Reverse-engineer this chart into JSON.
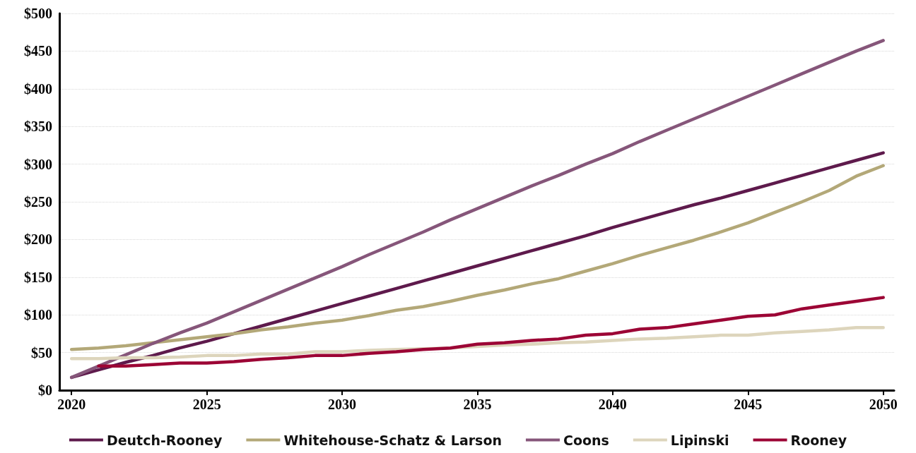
{
  "chart_data": {
    "type": "line",
    "x": [
      2020,
      2021,
      2022,
      2023,
      2024,
      2025,
      2026,
      2027,
      2028,
      2029,
      2030,
      2031,
      2032,
      2033,
      2034,
      2035,
      2036,
      2037,
      2038,
      2039,
      2040,
      2041,
      2042,
      2043,
      2044,
      2045,
      2046,
      2047,
      2048,
      2049,
      2050
    ],
    "series": [
      {
        "name": "Deutch-Rooney",
        "color": "#5e1a4c",
        "values": [
          17,
          27,
          37,
          46,
          56,
          65,
          75,
          85,
          95,
          105,
          115,
          125,
          135,
          145,
          155,
          165,
          175,
          185,
          195,
          205,
          216,
          226,
          236,
          246,
          255,
          265,
          275,
          285,
          295,
          305,
          315
        ]
      },
      {
        "name": "Whitehouse-Schatz & Larson",
        "color": "#b3a878",
        "values": [
          54,
          56,
          59,
          63,
          67,
          71,
          75,
          80,
          84,
          89,
          93,
          99,
          106,
          111,
          118,
          126,
          133,
          141,
          148,
          158,
          168,
          179,
          189,
          199,
          210,
          222,
          236,
          250,
          265,
          284,
          298
        ]
      },
      {
        "name": "Coons",
        "color": "#86567a",
        "values": [
          17,
          32,
          47,
          62,
          76,
          89,
          104,
          119,
          134,
          149,
          164,
          180,
          195,
          210,
          226,
          241,
          256,
          271,
          285,
          300,
          314,
          330,
          345,
          360,
          375,
          390,
          405,
          420,
          435,
          450,
          464
        ]
      },
      {
        "name": "Lipinski",
        "color": "#ddd5bc",
        "values": [
          42,
          42,
          43,
          43,
          44,
          46,
          46,
          48,
          48,
          51,
          51,
          53,
          54,
          55,
          56,
          58,
          60,
          61,
          63,
          64,
          66,
          68,
          69,
          71,
          73,
          73,
          76,
          78,
          80,
          83,
          83
        ]
      },
      {
        "name": "Rooney",
        "color": "#9c0535",
        "values": [
          null,
          32,
          32,
          34,
          36,
          36,
          38,
          41,
          43,
          46,
          46,
          49,
          51,
          54,
          56,
          61,
          63,
          66,
          68,
          73,
          75,
          81,
          83,
          88,
          93,
          98,
          100,
          108,
          113,
          118,
          123
        ]
      }
    ],
    "xlim": [
      2019.55,
      2050.4
    ],
    "xticks": [
      2020,
      2025,
      2030,
      2035,
      2040,
      2045,
      2050
    ],
    "ylim": [
      0,
      500
    ],
    "yticks": [
      {
        "value": 0,
        "label": "$0"
      },
      {
        "value": 50,
        "label": "$50"
      },
      {
        "value": 100,
        "label": "$100"
      },
      {
        "value": 150,
        "label": "$150"
      },
      {
        "value": 200,
        "label": "$200"
      },
      {
        "value": 250,
        "label": "$250"
      },
      {
        "value": 300,
        "label": "$300"
      },
      {
        "value": 350,
        "label": "$350"
      },
      {
        "value": 400,
        "label": "$400"
      },
      {
        "value": 450,
        "label": "$450"
      },
      {
        "value": 500,
        "label": "$500"
      }
    ],
    "grid": "y",
    "legend": "bottom",
    "marker": "none",
    "line_style": "solid"
  }
}
